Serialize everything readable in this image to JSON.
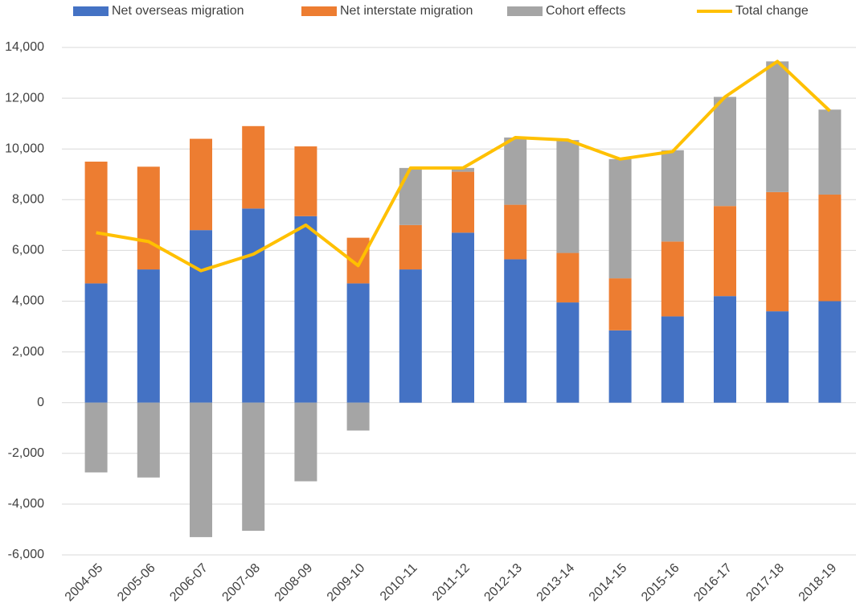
{
  "chart_data": {
    "type": "bar",
    "stacked": true,
    "categories": [
      "2004-05",
      "2005-06",
      "2006-07",
      "2007-08",
      "2008-09",
      "2009-10",
      "2010-11",
      "2011-12",
      "2012-13",
      "2013-14",
      "2014-15",
      "2015-16",
      "2016-17",
      "2017-18",
      "2018-19"
    ],
    "series": [
      {
        "name": "Net overseas migration",
        "type": "bar",
        "color": "#4472c4",
        "values": [
          4700,
          5250,
          6800,
          7650,
          7350,
          4700,
          5250,
          6700,
          5650,
          3950,
          2850,
          3400,
          4200,
          3600,
          4000
        ]
      },
      {
        "name": "Net interstate migration",
        "type": "bar",
        "color": "#ed7d31",
        "values": [
          4800,
          4050,
          3600,
          3250,
          2750,
          1800,
          1750,
          2400,
          2150,
          1950,
          2050,
          2950,
          3550,
          4700,
          4200
        ]
      },
      {
        "name": "Cohort effects",
        "type": "bar",
        "color": "#a5a5a5",
        "values": [
          -2750,
          -2950,
          -5300,
          -5050,
          -3100,
          -1100,
          2250,
          150,
          2650,
          4450,
          4700,
          3600,
          4300,
          5150,
          3350
        ]
      },
      {
        "name": "Total change",
        "type": "line",
        "color": "#ffc000",
        "values": [
          6700,
          6350,
          5200,
          5850,
          7000,
          5400,
          9250,
          9250,
          10450,
          10350,
          9600,
          9900,
          12050,
          13450,
          11500
        ]
      }
    ],
    "ylim": [
      -6000,
      14000
    ],
    "yticks": [
      {
        "value": -6000,
        "label": "-6,000"
      },
      {
        "value": -4000,
        "label": "-4,000"
      },
      {
        "value": -2000,
        "label": "-2,000"
      },
      0,
      {
        "value": 2000,
        "label": "2,000"
      },
      {
        "value": 4000,
        "label": "4,000"
      },
      {
        "value": 6000,
        "label": "6,000"
      },
      {
        "value": 8000,
        "label": "8,000"
      },
      {
        "value": 10000,
        "label": "10,000"
      },
      {
        "value": 12000,
        "label": "12,000"
      },
      {
        "value": 14000,
        "label": "14,000"
      }
    ],
    "grid": true,
    "legend": "top"
  }
}
